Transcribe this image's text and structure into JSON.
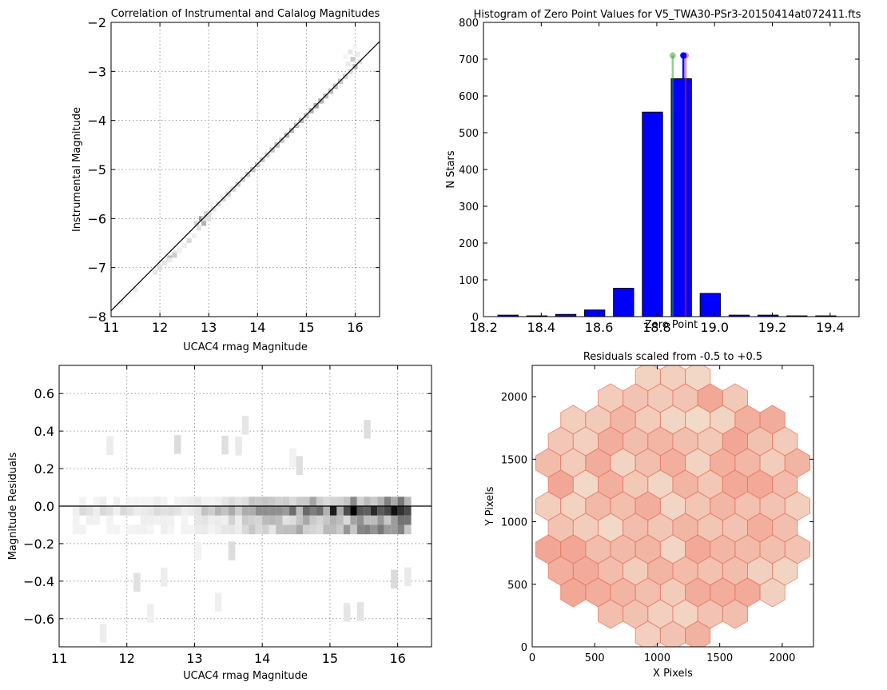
{
  "chart_data": [
    {
      "type": "heatmap",
      "panel": "top-left",
      "title": "Correlation of Instrumental and Calalog Magnitudes",
      "xlabel": "UCAC4 rmag Magnitude",
      "ylabel": "Instrumental Magnitude",
      "xlim": [
        11,
        16.5
      ],
      "ylim": [
        -8,
        -2
      ],
      "xticks": [
        "11",
        "12",
        "13",
        "14",
        "15",
        "16"
      ],
      "yticks": [
        "−2",
        "−3",
        "−4",
        "−5",
        "−6",
        "−7",
        "−8"
      ],
      "grid": true,
      "fit_line": {
        "x": [
          11,
          16.5
        ],
        "y": [
          -7.88,
          -2.39
        ]
      },
      "colormap": "greys",
      "cells": [
        [
          11.2,
          -7.7,
          0.1
        ],
        [
          11.4,
          -7.55,
          0.1
        ],
        [
          11.5,
          -7.45,
          0.08
        ],
        [
          12.0,
          -7.0,
          0.25
        ],
        [
          12.1,
          -6.9,
          0.3
        ],
        [
          12.2,
          -6.8,
          0.25
        ],
        [
          12.3,
          -6.75,
          0.2
        ],
        [
          12.5,
          -6.55,
          0.15
        ],
        [
          12.6,
          -6.45,
          0.15
        ],
        [
          12.9,
          -6.1,
          0.3
        ],
        [
          12.85,
          -6.0,
          0.4
        ],
        [
          13.0,
          -5.9,
          0.35
        ],
        [
          13.1,
          -5.8,
          0.3
        ],
        [
          13.2,
          -5.7,
          0.25
        ],
        [
          13.3,
          -5.6,
          0.3
        ],
        [
          13.4,
          -5.5,
          0.35
        ],
        [
          13.5,
          -5.4,
          0.4
        ],
        [
          13.6,
          -5.3,
          0.35
        ],
        [
          13.7,
          -5.2,
          0.45
        ],
        [
          13.8,
          -5.1,
          0.4
        ],
        [
          13.9,
          -5.0,
          0.5
        ],
        [
          14.0,
          -4.9,
          0.55
        ],
        [
          14.1,
          -4.8,
          0.45
        ],
        [
          14.2,
          -4.7,
          0.5
        ],
        [
          14.3,
          -4.6,
          0.45
        ],
        [
          14.4,
          -4.5,
          0.55
        ],
        [
          14.5,
          -4.4,
          0.6
        ],
        [
          14.6,
          -4.3,
          0.5
        ],
        [
          14.7,
          -4.2,
          0.75
        ],
        [
          14.8,
          -4.1,
          0.6
        ],
        [
          14.9,
          -4.0,
          0.55
        ],
        [
          15.0,
          -3.9,
          0.65
        ],
        [
          15.1,
          -3.8,
          0.6
        ],
        [
          15.2,
          -3.7,
          0.75
        ],
        [
          15.3,
          -3.6,
          0.85
        ],
        [
          15.4,
          -3.5,
          0.7
        ],
        [
          15.5,
          -3.4,
          0.65
        ],
        [
          15.6,
          -3.3,
          0.6
        ],
        [
          15.7,
          -3.2,
          0.55
        ],
        [
          15.8,
          -3.1,
          0.5
        ],
        [
          15.9,
          -3.0,
          0.4
        ],
        [
          16.0,
          -2.9,
          0.3
        ],
        [
          15.95,
          -2.75,
          0.2
        ],
        [
          15.9,
          -2.6,
          0.1
        ]
      ]
    },
    {
      "type": "bar",
      "panel": "top-right",
      "title": "Histogram of Zero Point Values for V5_TWA30-PSr3-20150414at072411.fts",
      "xlabel": "Zero Point",
      "ylabel": "N Stars",
      "xlim": [
        18.2,
        19.5
      ],
      "ylim": [
        0,
        800
      ],
      "xticks": [
        "18.2",
        "18.4",
        "18.6",
        "18.8",
        "19.0",
        "19.2",
        "19.4"
      ],
      "yticks": [
        "0",
        "100",
        "200",
        "300",
        "400",
        "500",
        "600",
        "700",
        "800"
      ],
      "grid": false,
      "bar_color": "#0000ff",
      "bar_centers": [
        18.285,
        18.385,
        18.485,
        18.585,
        18.685,
        18.785,
        18.885,
        18.985,
        19.085,
        19.185,
        19.285,
        19.385
      ],
      "values": [
        4,
        2,
        6,
        18,
        77,
        556,
        647,
        63,
        4,
        4,
        2,
        2
      ],
      "stems": [
        {
          "x": 18.855,
          "y": 710,
          "color": "#2ca02c"
        },
        {
          "x": 18.9,
          "y": 710,
          "color": "#d62728"
        },
        {
          "x": 18.892,
          "y": 710,
          "color": "#0000ff"
        }
      ]
    },
    {
      "type": "heatmap",
      "panel": "bottom-left",
      "title": "",
      "xlabel": "UCAC4 rmag Magnitude",
      "ylabel": "Magnitude Residuals",
      "xlim": [
        11,
        16.5
      ],
      "ylim": [
        -0.75,
        0.75
      ],
      "xticks": [
        "11",
        "12",
        "13",
        "14",
        "15",
        "16"
      ],
      "yticks": [
        "0.6",
        "0.4",
        "0.2",
        "0.0",
        "−0.2",
        "−0.4",
        "−0.6"
      ],
      "grid": true,
      "hline": 0.0,
      "colormap": "greys"
    },
    {
      "type": "scatter",
      "panel": "bottom-right",
      "title": "Residuals scaled from -0.5 to +0.5",
      "xlabel": "X Pixels",
      "ylabel": "Y Pixels",
      "xlim": [
        0,
        2250
      ],
      "ylim": [
        0,
        2250
      ],
      "xticks": [
        "0",
        "500",
        "1000",
        "1500",
        "2000"
      ],
      "yticks": [
        "0",
        "500",
        "1000",
        "1500",
        "2000"
      ],
      "grid": false,
      "marker": "hexagon",
      "colormap": "reds"
    }
  ]
}
